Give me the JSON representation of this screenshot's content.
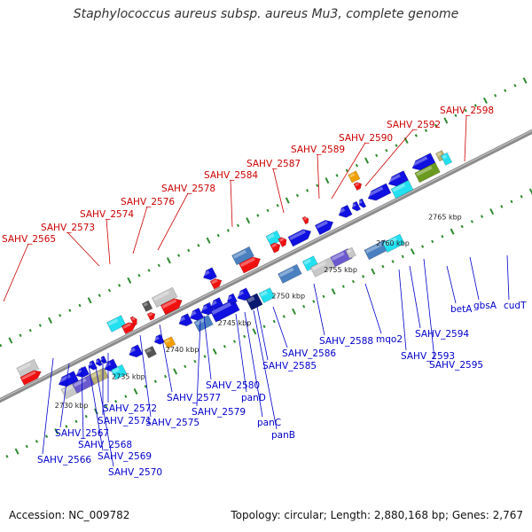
{
  "title": "Staphylococcus aureus subsp. aureus Mu3, complete genome",
  "footer": {
    "accession": "Accession: NC_009782",
    "stats": "Topology: circular; Length: 2,880,168 bp; Genes: 2,767"
  },
  "colors": {
    "backbone": "#8c8c8c",
    "tick_green": "#2e8b2e",
    "label_top": "#cc0000",
    "label_bottom": "#0000cc"
  },
  "kbp_ticks": [
    "2730 kbp",
    "2735 kbp",
    "2740 kbp",
    "2745 kbp",
    "2750 kbp",
    "2755 kbp",
    "2760 kbp",
    "2765 kbp"
  ],
  "top_labels": [
    "SAHV_2565",
    "SAHV_2573",
    "SAHV_2574",
    "SAHV_2576",
    "SAHV_2578",
    "SAHV_2584",
    "SAHV_2587",
    "SAHV_2589",
    "SAHV_2590",
    "SAHV_2592",
    "SAHV_2598"
  ],
  "bottom_labels": [
    "SAHV_2566",
    "SAHV_2567",
    "SAHV_2568",
    "SAHV_2569",
    "SAHV_2570",
    "SAHV_2571",
    "SAHV_2572",
    "SAHV_2575",
    "SAHV_2577",
    "SAHV_2579",
    "SAHV_2580",
    "panD",
    "panC",
    "panB",
    "SAHV_2585",
    "SAHV_2586",
    "SAHV_2588",
    "mqo2",
    "SAHV_2593",
    "SAHV_2594",
    "SAHV_2595",
    "betA",
    "gbsA",
    "cudT"
  ]
}
